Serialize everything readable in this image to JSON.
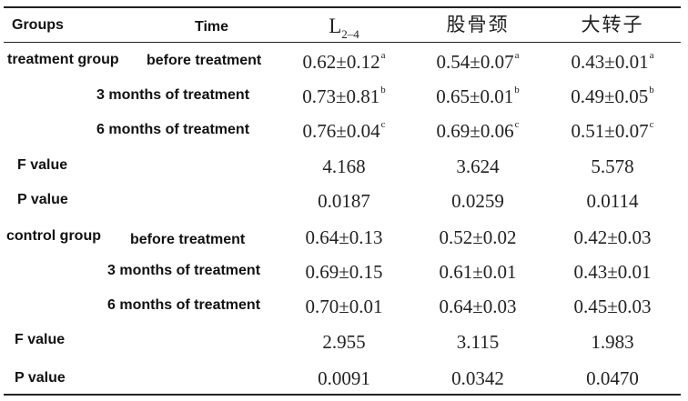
{
  "header": {
    "groups": "Groups",
    "time": "Time",
    "col_l_base": "L",
    "col_l_sub": "2–4",
    "col_femoral_neck": "股骨颈",
    "col_trochanter": "大转子"
  },
  "treatment": {
    "group_label": "treatment group",
    "rows": [
      {
        "time": "before treatment",
        "l": "0.62±0.12",
        "l_sup": "a",
        "fn": "0.54±0.07",
        "fn_sup": "a",
        "gt": "0.43±0.01",
        "gt_sup": "a"
      },
      {
        "time": "3 months of treatment",
        "l": "0.73±0.81",
        "l_sup": "b",
        "fn": "0.65±0.01",
        "fn_sup": "b",
        "gt": "0.49±0.05",
        "gt_sup": "b"
      },
      {
        "time": "6 months of treatment",
        "l": "0.76±0.04",
        "l_sup": "c",
        "fn": "0.69±0.06",
        "fn_sup": "c",
        "gt": "0.51±0.07",
        "gt_sup": "c"
      }
    ],
    "f": {
      "label": "F value",
      "l": "4.168",
      "fn": "3.624",
      "gt": "5.578"
    },
    "p": {
      "label": "P value",
      "l": "0.0187",
      "fn": "0.0259",
      "gt": "0.0114"
    }
  },
  "control": {
    "group_label": "control group",
    "rows": [
      {
        "time": "before treatment",
        "l": "0.64±0.13",
        "fn": "0.52±0.02",
        "gt": "0.42±0.03"
      },
      {
        "time": "3 months of treatment",
        "l": "0.69±0.15",
        "fn": "0.61±0.01",
        "gt": "0.43±0.01"
      },
      {
        "time": "6 months of treatment",
        "l": "0.70±0.01",
        "fn": "0.64±0.03",
        "gt": "0.45±0.03"
      }
    ],
    "f": {
      "label": "F value",
      "l": "2.955",
      "fn": "3.115",
      "gt": "1.983"
    },
    "p": {
      "label": "P value",
      "l": "0.0091",
      "fn": "0.0342",
      "gt": "0.0470"
    }
  }
}
